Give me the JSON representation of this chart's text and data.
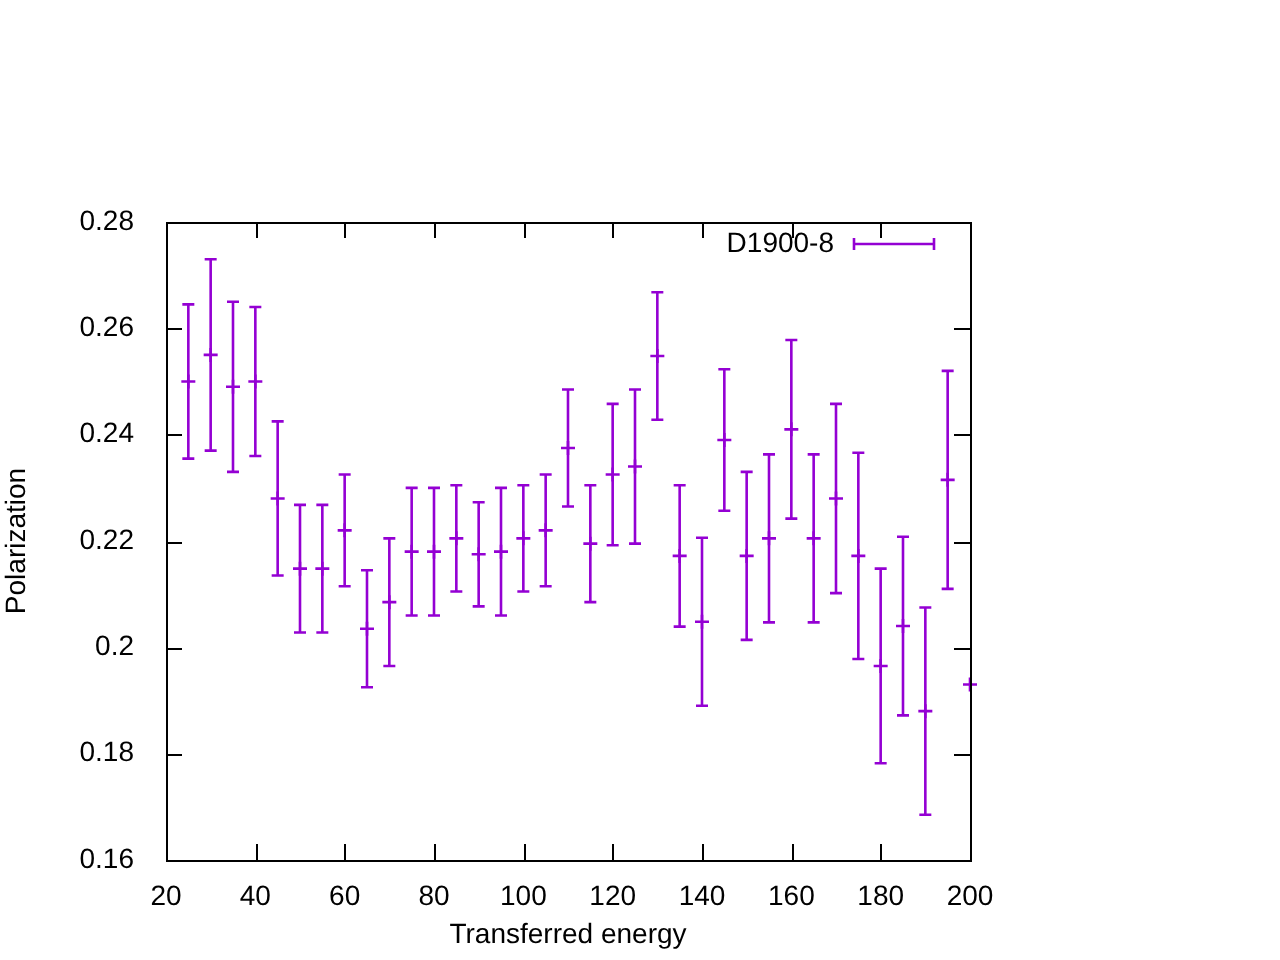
{
  "chart_data": {
    "type": "scatter",
    "xlabel": "Transferred energy",
    "ylabel": "Polarization",
    "xlim": [
      20,
      200
    ],
    "xticks": [
      20,
      40,
      60,
      80,
      100,
      120,
      140,
      160,
      180,
      200
    ],
    "ylim": [
      0.16,
      0.28
    ],
    "yticks": [
      0.16,
      0.18,
      0.2,
      0.22,
      0.24,
      0.26,
      0.28
    ],
    "grid": false,
    "legend": "top right",
    "marker": "cross",
    "series": [
      {
        "name": "D1900-8",
        "color": "#9400d3",
        "x": [
          25,
          30,
          35,
          40,
          45,
          50,
          55,
          60,
          65,
          70,
          75,
          80,
          85,
          90,
          95,
          100,
          105,
          110,
          115,
          120,
          125,
          130,
          135,
          140,
          145,
          150,
          155,
          160,
          165,
          170,
          175,
          180,
          185,
          190,
          195,
          200
        ],
        "values": [
          0.25,
          0.255,
          0.249,
          0.25,
          0.228,
          0.2148,
          0.2148,
          0.222,
          0.2035,
          0.2085,
          0.218,
          0.218,
          0.2205,
          0.2175,
          0.218,
          0.2205,
          0.222,
          0.2375,
          0.2195,
          0.2325,
          0.234,
          0.2548,
          0.2172,
          0.2048,
          0.239,
          0.2172,
          0.2205,
          0.241,
          0.2205,
          0.228,
          0.2172,
          0.1965,
          0.204,
          0.188,
          0.2315,
          0.193
        ],
        "errors": [
          0.0145,
          0.018,
          0.016,
          0.014,
          0.0145,
          0.012,
          0.012,
          0.0105,
          0.011,
          0.012,
          0.012,
          0.012,
          0.01,
          0.0098,
          0.012,
          0.01,
          0.0105,
          0.011,
          0.011,
          0.0133,
          0.0145,
          0.012,
          0.0133,
          0.0158,
          0.0133,
          0.0158,
          0.0158,
          0.0168,
          0.0158,
          0.0178,
          0.0194,
          0.0183,
          0.0168,
          0.0195,
          0.0205,
          null
        ]
      }
    ]
  }
}
